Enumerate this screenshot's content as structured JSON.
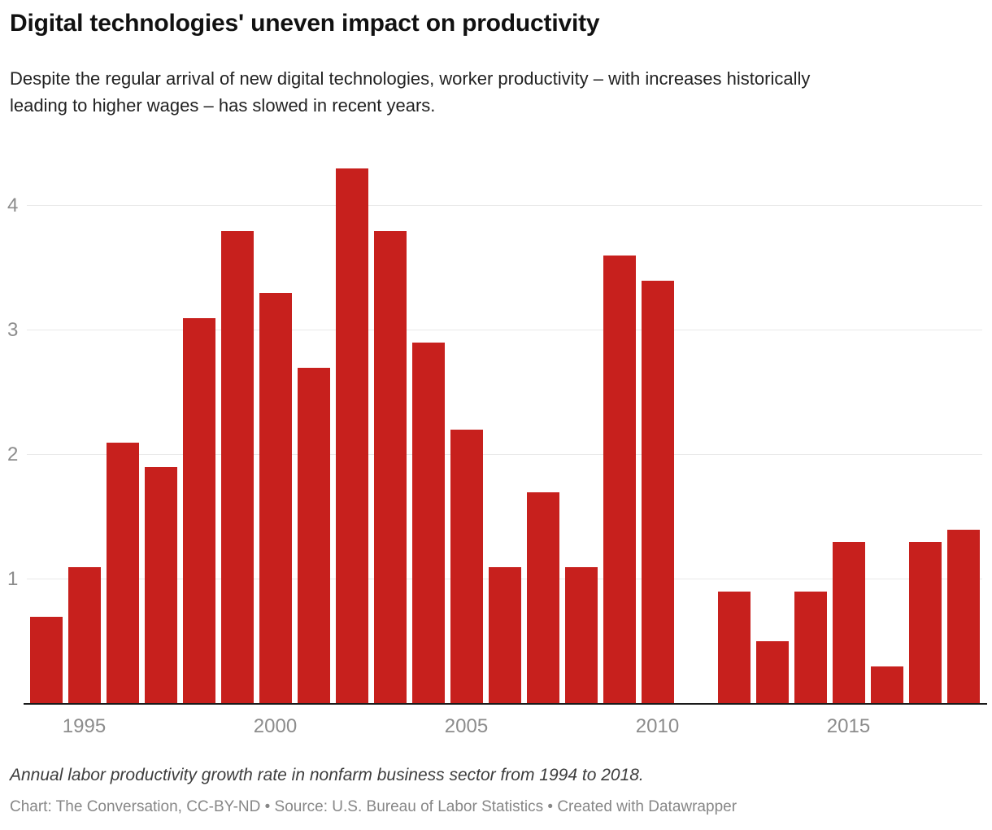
{
  "header": {
    "title": "Digital technologies' uneven impact on productivity",
    "subtitle": "Despite the regular arrival of new digital technologies, worker productivity – with increases historically leading to higher wages – has slowed in recent years."
  },
  "chart_data": {
    "type": "bar",
    "title": "Digital technologies' uneven impact on productivity",
    "xlabel": "",
    "ylabel": "",
    "x": [
      1994,
      1995,
      1996,
      1997,
      1998,
      1999,
      2000,
      2001,
      2002,
      2003,
      2004,
      2005,
      2006,
      2007,
      2008,
      2009,
      2010,
      2011,
      2012,
      2013,
      2014,
      2015,
      2016,
      2017,
      2018
    ],
    "values": [
      0.7,
      1.1,
      2.1,
      1.9,
      3.1,
      3.8,
      3.3,
      2.7,
      4.3,
      3.8,
      2.9,
      2.2,
      1.1,
      1.7,
      1.1,
      3.6,
      3.4,
      0,
      0.9,
      0.5,
      0.9,
      1.3,
      0.3,
      1.3,
      1.4
    ],
    "ylim": [
      0,
      4.4
    ],
    "yticks": [
      1,
      2,
      3,
      4
    ],
    "xtick_labels": [
      "1995",
      "2000",
      "2005",
      "2010",
      "2015"
    ],
    "xtick_years": [
      1995,
      2000,
      2005,
      2010,
      2015
    ],
    "grid": "horizontal",
    "legend": "none",
    "colors": {
      "bar": "#c7201d",
      "gridline": "#e9e9e9",
      "axis_line": "#1a1a1a",
      "tick_label": "#8c8c8c"
    }
  },
  "footer": {
    "note": "Annual labor productivity growth rate in nonfarm business sector from 1994 to 2018.",
    "credits": "Chart: The Conversation, CC-BY-ND • Source: U.S. Bureau of Labor Statistics • Created with Datawrapper"
  }
}
